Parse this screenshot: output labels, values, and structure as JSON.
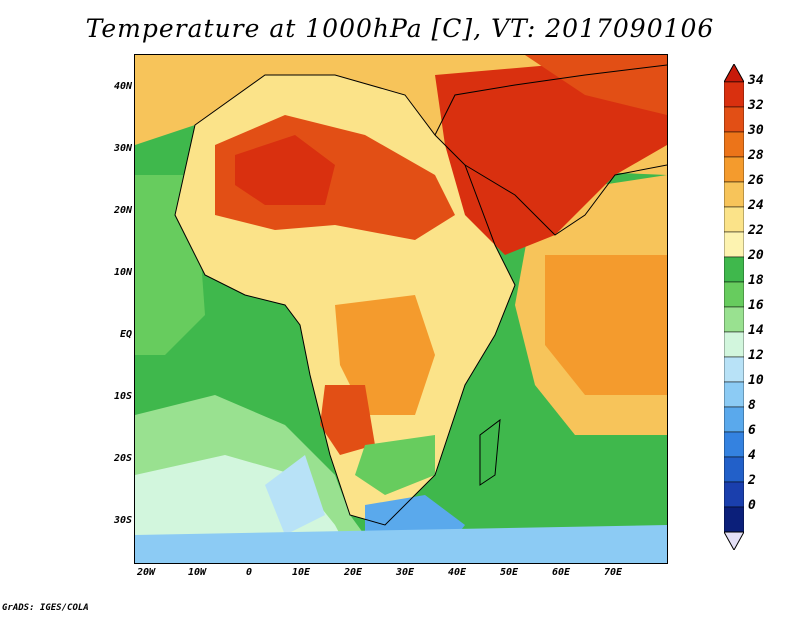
{
  "title": "Temperature at 1000hPa [C], VT: 2017090106",
  "credit": "GrADS: IGES/COLA",
  "lat_labels": [
    "40N",
    "30N",
    "20N",
    "10N",
    "EQ",
    "10S",
    "20S",
    "30S"
  ],
  "lon_labels": [
    "20W",
    "10W",
    "0",
    "10E",
    "20E",
    "30E",
    "40E",
    "50E",
    "60E",
    "70E"
  ],
  "colorbar": {
    "levels": [
      "34",
      "32",
      "30",
      "28",
      "26",
      "24",
      "22",
      "20",
      "18",
      "16",
      "14",
      "12",
      "10",
      "8",
      "6",
      "4",
      "2",
      "0"
    ],
    "colors": [
      "#d9300f",
      "#e24f15",
      "#ec7419",
      "#f49b2d",
      "#f7c45a",
      "#fbe389",
      "#fdf3b0",
      "#3fb84c",
      "#67cc5e",
      "#99e190",
      "#d2f6dd",
      "#b8e2f7",
      "#8ccbf4",
      "#5aa9ec",
      "#3482e0",
      "#2260c9",
      "#1a3fad",
      "#0b1f7a"
    ]
  },
  "map_colors": {
    "ocean_warm": "#f5b256",
    "ocean_green": "#3fb84c",
    "sahara": "#d9300f",
    "arabia": "#d9300f",
    "south_cool": "#5aa9ec"
  }
}
